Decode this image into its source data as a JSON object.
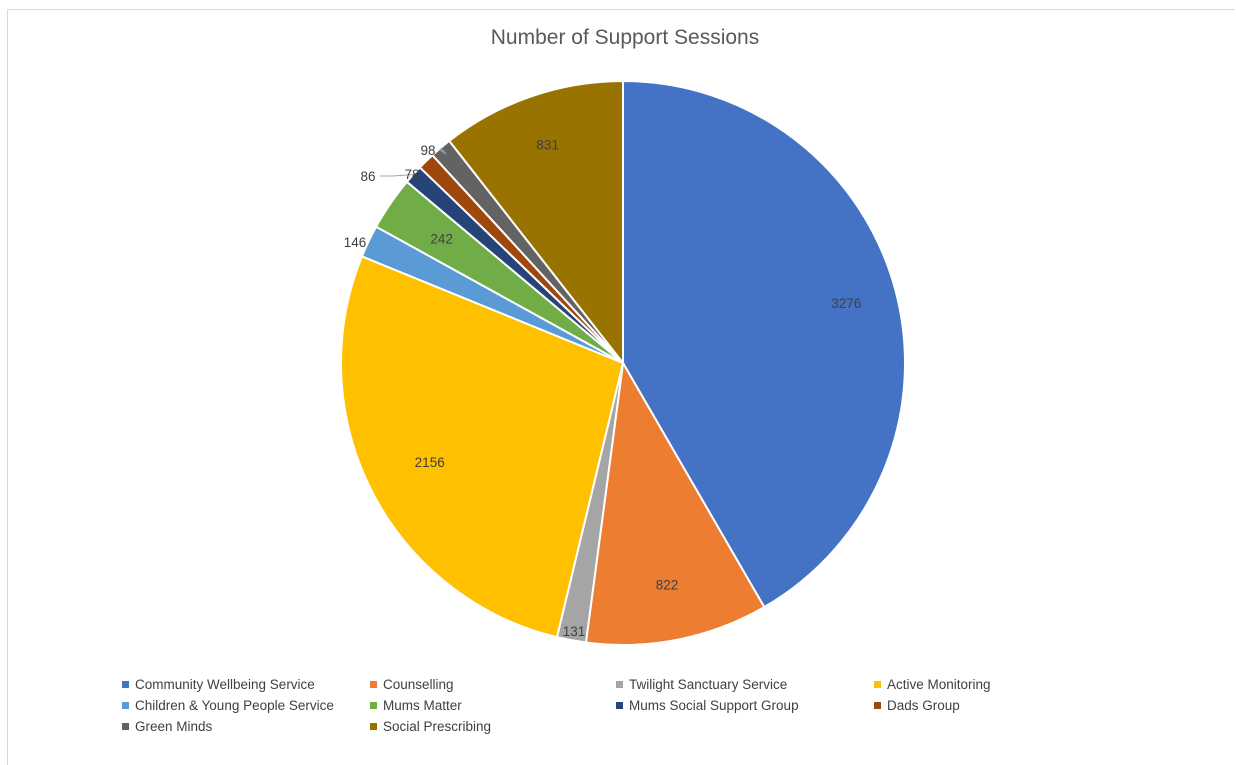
{
  "chart_data": {
    "type": "pie",
    "title": "Number of Support Sessions",
    "legend_position": "bottom",
    "slices": [
      {
        "label": "Community Wellbeing Service",
        "value": 3276,
        "color": "#4472c4"
      },
      {
        "label": "Counselling",
        "value": 822,
        "color": "#ed7d31"
      },
      {
        "label": "Twilight Sanctuary Service",
        "value": 131,
        "color": "#a5a5a5"
      },
      {
        "label": "Active Monitoring",
        "value": 2156,
        "color": "#ffc000"
      },
      {
        "label": "Children & Young People Service",
        "value": 146,
        "color": "#5b9bd5"
      },
      {
        "label": "Mums Matter",
        "value": 242,
        "color": "#70ad47"
      },
      {
        "label": "Mums Social Support Group",
        "value": 86,
        "color": "#264478"
      },
      {
        "label": "Dads Group",
        "value": 78,
        "color": "#9e480e"
      },
      {
        "label": "Green Minds",
        "value": 98,
        "color": "#636363"
      },
      {
        "label": "Social Prescribing",
        "value": 831,
        "color": "#997300"
      }
    ]
  }
}
